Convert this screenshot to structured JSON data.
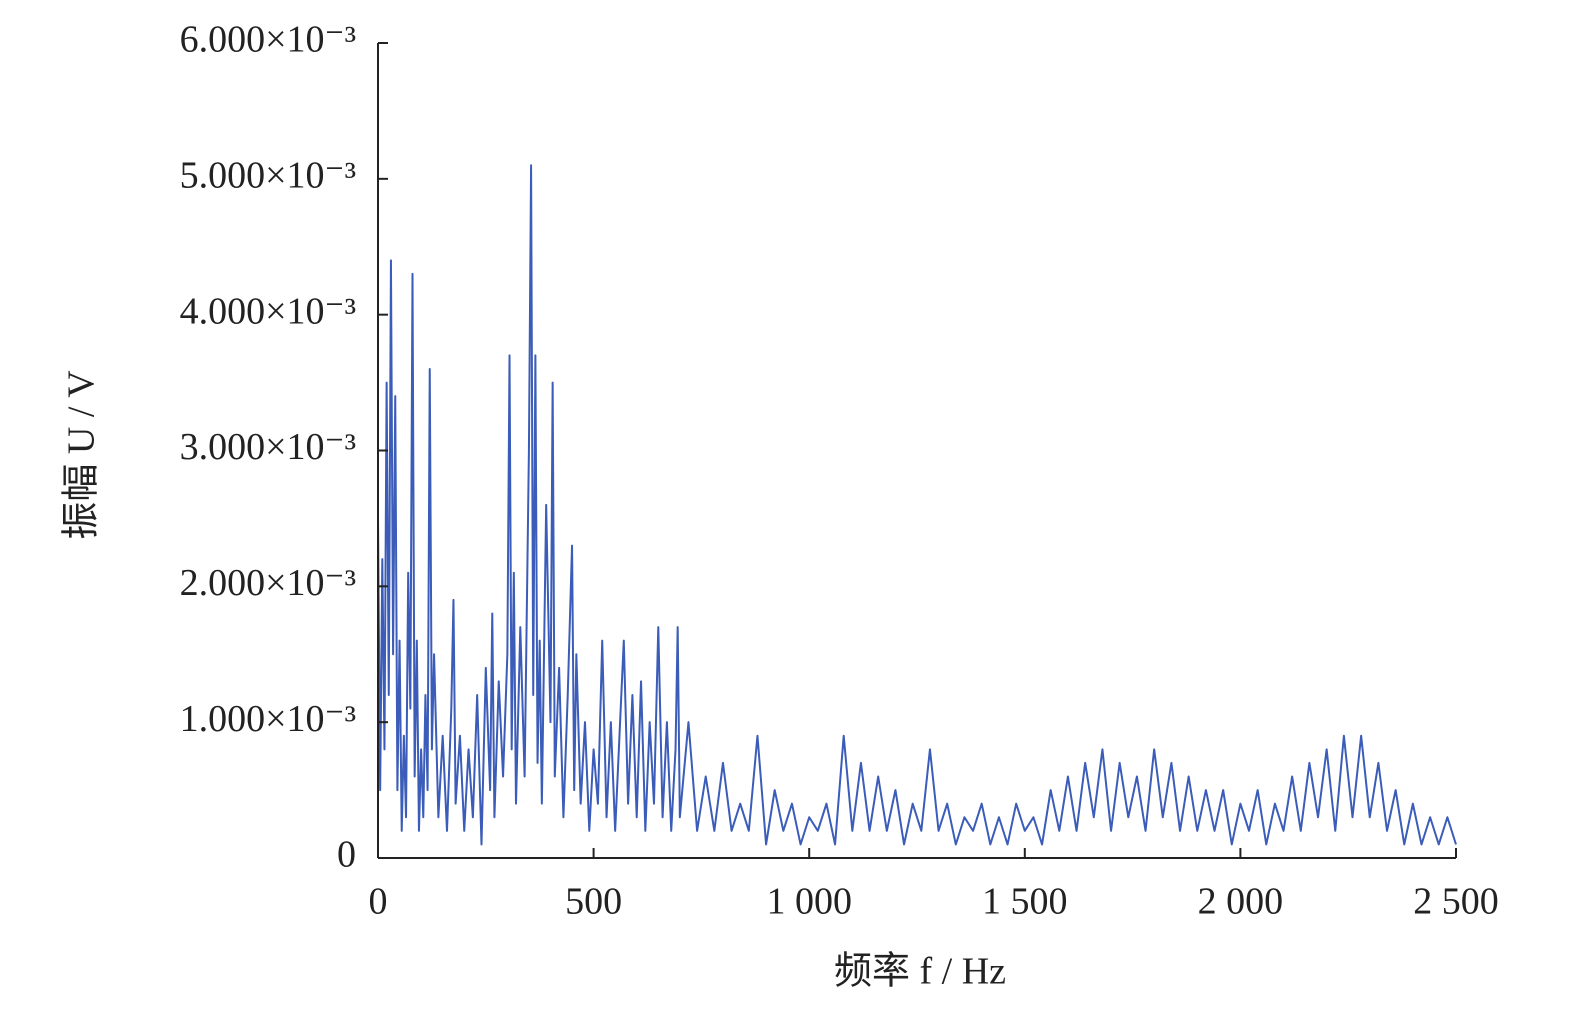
{
  "chart_data": {
    "type": "line",
    "xlabel": "频率 f / Hz",
    "ylabel": "振幅 U / V",
    "color": "#3b5cb8",
    "x": [
      0,
      5,
      10,
      15,
      20,
      25,
      30,
      35,
      40,
      45,
      50,
      55,
      60,
      65,
      70,
      75,
      80,
      85,
      90,
      95,
      100,
      105,
      110,
      115,
      120,
      125,
      130,
      140,
      150,
      160,
      170,
      175,
      180,
      190,
      200,
      210,
      220,
      230,
      240,
      250,
      260,
      265,
      270,
      280,
      290,
      300,
      305,
      310,
      315,
      320,
      330,
      340,
      350,
      355,
      360,
      365,
      370,
      375,
      380,
      390,
      400,
      405,
      410,
      420,
      430,
      440,
      450,
      455,
      460,
      470,
      480,
      490,
      500,
      510,
      520,
      530,
      540,
      550,
      560,
      570,
      580,
      590,
      600,
      610,
      620,
      630,
      640,
      650,
      660,
      670,
      680,
      690,
      695,
      700,
      720,
      740,
      760,
      780,
      800,
      820,
      840,
      860,
      880,
      900,
      920,
      940,
      960,
      980,
      1000,
      1020,
      1040,
      1060,
      1080,
      1100,
      1120,
      1140,
      1160,
      1180,
      1200,
      1220,
      1240,
      1260,
      1280,
      1300,
      1320,
      1340,
      1360,
      1380,
      1400,
      1420,
      1440,
      1460,
      1480,
      1500,
      1520,
      1540,
      1560,
      1580,
      1600,
      1620,
      1640,
      1660,
      1680,
      1700,
      1720,
      1740,
      1760,
      1780,
      1800,
      1820,
      1840,
      1860,
      1880,
      1900,
      1920,
      1940,
      1960,
      1980,
      2000,
      2020,
      2040,
      2060,
      2080,
      2100,
      2120,
      2140,
      2160,
      2180,
      2200,
      2220,
      2240,
      2260,
      2280,
      2300,
      2320,
      2340,
      2360,
      2380,
      2400,
      2420,
      2440,
      2460,
      2480,
      2500
    ],
    "values": [
      0.0025,
      0.0005,
      0.0022,
      0.0008,
      0.0035,
      0.0012,
      0.0044,
      0.0015,
      0.0034,
      0.0005,
      0.0016,
      0.0002,
      0.0009,
      0.0003,
      0.0021,
      0.0011,
      0.0043,
      0.0006,
      0.0016,
      0.0002,
      0.0008,
      0.0003,
      0.0012,
      0.0005,
      0.0036,
      0.0008,
      0.0015,
      0.0003,
      0.0009,
      0.0002,
      0.0011,
      0.0019,
      0.0004,
      0.0009,
      0.0002,
      0.0008,
      0.0003,
      0.0012,
      0.0001,
      0.0014,
      0.0005,
      0.0018,
      0.0003,
      0.0013,
      0.0006,
      0.0015,
      0.0037,
      0.0008,
      0.0021,
      0.0004,
      0.0017,
      0.0006,
      0.003,
      0.0051,
      0.0012,
      0.0037,
      0.0007,
      0.0016,
      0.0004,
      0.0026,
      0.001,
      0.0035,
      0.0006,
      0.0014,
      0.0003,
      0.0012,
      0.0023,
      0.0005,
      0.0015,
      0.0004,
      0.001,
      0.0002,
      0.0008,
      0.0004,
      0.0016,
      0.0003,
      0.001,
      0.0002,
      0.0009,
      0.0016,
      0.0004,
      0.0012,
      0.0003,
      0.0013,
      0.0002,
      0.001,
      0.0004,
      0.0017,
      0.0003,
      0.001,
      0.0002,
      0.0008,
      0.0017,
      0.0003,
      0.001,
      0.0002,
      0.0006,
      0.0002,
      0.0007,
      0.0002,
      0.0004,
      0.0002,
      0.0009,
      0.0001,
      0.0005,
      0.0002,
      0.0004,
      0.0001,
      0.0003,
      0.0002,
      0.0004,
      0.0001,
      0.0009,
      0.0002,
      0.0007,
      0.0002,
      0.0006,
      0.0002,
      0.0005,
      0.0001,
      0.0004,
      0.0002,
      0.0008,
      0.0002,
      0.0004,
      0.0001,
      0.0003,
      0.0002,
      0.0004,
      0.0001,
      0.0003,
      0.0001,
      0.0004,
      0.0002,
      0.0003,
      0.0001,
      0.0005,
      0.0002,
      0.0006,
      0.0002,
      0.0007,
      0.0003,
      0.0008,
      0.0002,
      0.0007,
      0.0003,
      0.0006,
      0.0002,
      0.0008,
      0.0003,
      0.0007,
      0.0002,
      0.0006,
      0.0002,
      0.0005,
      0.0002,
      0.0005,
      0.0001,
      0.0004,
      0.0002,
      0.0005,
      0.0001,
      0.0004,
      0.0002,
      0.0006,
      0.0002,
      0.0007,
      0.0003,
      0.0008,
      0.0002,
      0.0009,
      0.0003,
      0.0009,
      0.0003,
      0.0007,
      0.0002,
      0.0005,
      0.0001,
      0.0004,
      0.0001,
      0.0003,
      0.0001,
      0.0003,
      0.0001
    ],
    "xlim": [
      0,
      2500
    ],
    "xticks": [
      0,
      500,
      {
        "value": 1000,
        "label": "1 000"
      },
      {
        "value": 1500,
        "label": "1 500"
      },
      {
        "value": 2000,
        "label": "2 000"
      },
      {
        "value": 2500,
        "label": "2 500"
      }
    ],
    "ylim": [
      0,
      0.006
    ],
    "yticks": [
      0,
      {
        "value": 0.001,
        "label": "1.000×10⁻³"
      },
      {
        "value": 0.002,
        "label": "2.000×10⁻³"
      },
      {
        "value": 0.003,
        "label": "3.000×10⁻³"
      },
      {
        "value": 0.004,
        "label": "4.000×10⁻³"
      },
      {
        "value": 0.005,
        "label": "5.000×10⁻³"
      },
      {
        "value": 0.006,
        "label": "6.000×10⁻³"
      }
    ],
    "grid": false
  }
}
